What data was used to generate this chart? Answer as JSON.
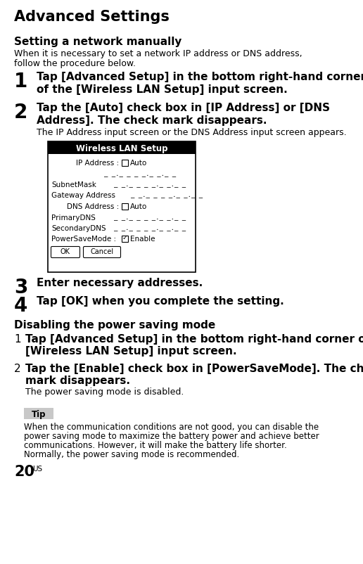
{
  "title": "Advanced Settings",
  "bg_color": "#ffffff",
  "section1_title": "Setting a network manually",
  "section1_intro": "When it is necessary to set a network IP address or DNS address,\nfollow the procedure below.",
  "steps": [
    {
      "num": "1",
      "bold": "Tap [Advanced Setup] in the bottom right-hand corner\nof the [Wireless LAN Setup] input screen."
    },
    {
      "num": "2",
      "bold": "Tap the [Auto] check box in [IP Address] or [DNS\nAddress]. The check mark disappears.",
      "normal": "The IP Address input screen or the DNS Address input screen appears."
    },
    {
      "num": "3",
      "bold": "Enter necessary addresses."
    },
    {
      "num": "4",
      "bold": "Tap [OK] when you complete the setting."
    }
  ],
  "section2_title": "Disabling the power saving mode",
  "steps2": [
    {
      "num": "1",
      "bold": "Tap [Advanced Setup] in the bottom right-hand corner of the\n[Wireless LAN Setup] input screen."
    },
    {
      "num": "2",
      "bold": "Tap the [Enable] check box in [PowerSaveMode]. The check\nmark disappears.",
      "normal": "The power saving mode is disabled."
    }
  ],
  "tip_label": "Tip",
  "tip_text": "When the communication conditions are not good, you can disable the\npower saving mode to maximize the battery power and achieve better\ncommunications. However, it will make the battery life shorter.\nNormally, the power saving mode is recommended.",
  "page_number": "20",
  "page_super": "US"
}
